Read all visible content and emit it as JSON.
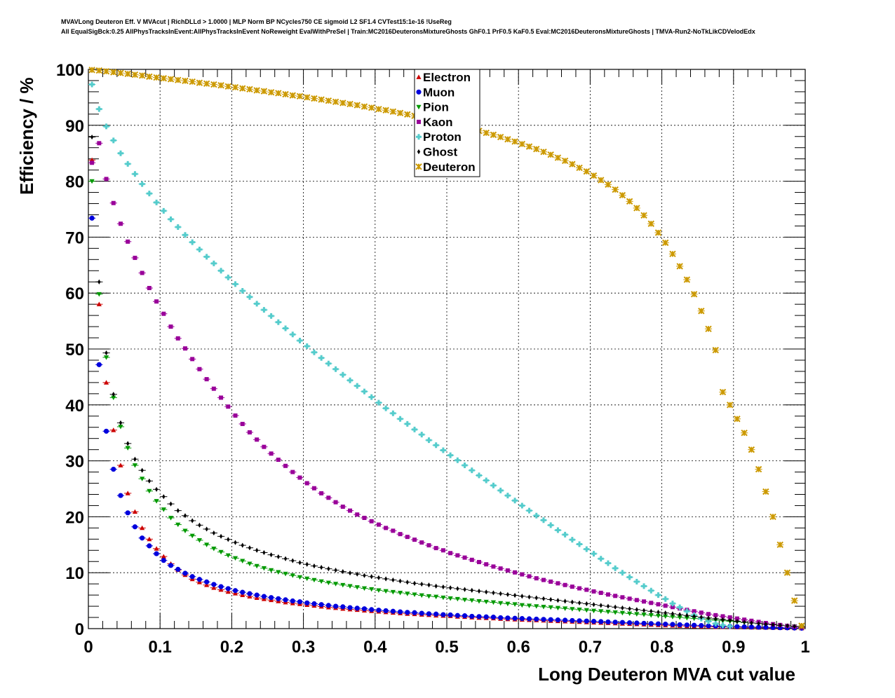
{
  "header": {
    "line1": "MVAVLong Deuteron Eff. V MVAcut | RichDLLd > 1.0000 | MLP Norm BP NCycles750 CE sigmoid L2 SF1.4 CVTest15:1e-16 !UseReg",
    "line2": "All EqualSigBck:0.25 AllPhysTracksInEvent:AllPhysTracksInEvent NoReweight EvalWithPreSel | Train:MC2016DeuteronsMixtureGhosts GhF0.1 PrF0.5 KaF0.5 Eval:MC2016DeuteronsMixtureGhosts | TMVA-Run2-NoTkLikCDVelodEdx"
  },
  "chart_data": {
    "type": "scatter",
    "title": "MVAVLong Deuteron Eff. V MVAcut",
    "xlabel": "Long Deuteron MVA cut value",
    "ylabel": "Efficiency / %",
    "xlim": [
      0,
      1
    ],
    "ylim": [
      0,
      100
    ],
    "grid": true,
    "legend_position": "top-center",
    "x_ticks": [
      "0",
      "0.1",
      "0.2",
      "0.3",
      "0.4",
      "0.5",
      "0.6",
      "0.7",
      "0.8",
      "0.9",
      "1"
    ],
    "y_ticks": [
      "0",
      "10",
      "20",
      "30",
      "40",
      "50",
      "60",
      "70",
      "80",
      "90",
      "100"
    ],
    "x": [
      0.005,
      0.015,
      0.025,
      0.035,
      0.045,
      0.055,
      0.065,
      0.075,
      0.085,
      0.095,
      0.105,
      0.115,
      0.125,
      0.135,
      0.145,
      0.155,
      0.165,
      0.175,
      0.185,
      0.195,
      0.205,
      0.215,
      0.225,
      0.235,
      0.245,
      0.255,
      0.265,
      0.275,
      0.285,
      0.295,
      0.305,
      0.315,
      0.325,
      0.335,
      0.345,
      0.355,
      0.365,
      0.375,
      0.385,
      0.395,
      0.405,
      0.415,
      0.425,
      0.435,
      0.445,
      0.455,
      0.465,
      0.475,
      0.485,
      0.495,
      0.505,
      0.515,
      0.525,
      0.535,
      0.545,
      0.555,
      0.565,
      0.575,
      0.585,
      0.595,
      0.605,
      0.615,
      0.625,
      0.635,
      0.645,
      0.655,
      0.665,
      0.675,
      0.685,
      0.695,
      0.705,
      0.715,
      0.725,
      0.735,
      0.745,
      0.755,
      0.765,
      0.775,
      0.785,
      0.795,
      0.805,
      0.815,
      0.825,
      0.835,
      0.845,
      0.855,
      0.865,
      0.875,
      0.885,
      0.895,
      0.905,
      0.915,
      0.925,
      0.935,
      0.945,
      0.955,
      0.965,
      0.975,
      0.985,
      0.995
    ],
    "series": [
      {
        "name": "Electron",
        "color": "#cc0000",
        "marker": "triangle-up",
        "values": [
          83.8,
          58.0,
          44.0,
          35.5,
          29.2,
          24.2,
          20.9,
          18.0,
          16.0,
          14.3,
          12.9,
          11.6,
          10.5,
          9.6,
          8.85,
          8.3,
          7.8,
          7.3,
          6.95,
          6.6,
          6.3,
          6.0,
          5.75,
          5.5,
          5.3,
          5.1,
          4.9,
          4.7,
          4.55,
          4.4,
          4.25,
          4.1,
          3.95,
          3.8,
          3.7,
          3.55,
          3.45,
          3.35,
          3.25,
          3.15,
          3.05,
          2.95,
          2.85,
          2.75,
          2.65,
          2.6,
          2.5,
          2.45,
          2.35,
          2.3,
          2.25,
          2.15,
          2.1,
          2.0,
          1.95,
          1.9,
          1.85,
          1.75,
          1.7,
          1.65,
          1.6,
          1.55,
          1.5,
          1.45,
          1.4,
          1.35,
          1.3,
          1.25,
          1.2,
          1.15,
          1.1,
          1.05,
          1.0,
          0.95,
          0.9,
          0.85,
          0.8,
          0.75,
          0.7,
          0.65,
          0.6,
          0.55,
          0.5,
          0.45,
          0.42,
          0.38,
          0.35,
          0.32,
          0.3,
          0.28,
          0.25,
          0.23,
          0.21,
          0.19,
          0.17,
          0.15,
          0.13,
          0.11,
          0.09,
          0.07
        ]
      },
      {
        "name": "Muon",
        "color": "#0000dd",
        "marker": "circle",
        "values": [
          73.4,
          47.2,
          35.3,
          28.5,
          23.8,
          20.7,
          18.2,
          16.2,
          14.8,
          13.4,
          12.2,
          11.3,
          10.6,
          9.9,
          9.3,
          8.8,
          8.35,
          7.9,
          7.5,
          7.15,
          6.8,
          6.5,
          6.25,
          6.0,
          5.75,
          5.55,
          5.35,
          5.15,
          4.95,
          4.8,
          4.6,
          4.45,
          4.3,
          4.15,
          4.0,
          3.9,
          3.75,
          3.65,
          3.55,
          3.4,
          3.3,
          3.2,
          3.1,
          3.0,
          2.9,
          2.85,
          2.75,
          2.65,
          2.6,
          2.5,
          2.45,
          2.35,
          2.3,
          2.2,
          2.15,
          2.1,
          2.05,
          1.95,
          1.9,
          1.85,
          1.8,
          1.75,
          1.7,
          1.65,
          1.6,
          1.55,
          1.5,
          1.45,
          1.4,
          1.35,
          1.3,
          1.25,
          1.2,
          1.15,
          1.1,
          1.05,
          1.0,
          0.95,
          0.9,
          0.85,
          0.8,
          0.75,
          0.7,
          0.65,
          0.6,
          0.55,
          0.5,
          0.45,
          0.42,
          0.38,
          0.35,
          0.32,
          0.29,
          0.26,
          0.23,
          0.2,
          0.17,
          0.14,
          0.11,
          0.08
        ]
      },
      {
        "name": "Pion",
        "color": "#009900",
        "marker": "triangle-down",
        "values": [
          80.0,
          59.8,
          48.5,
          41.3,
          36.1,
          32.3,
          29.2,
          26.8,
          24.6,
          22.8,
          21.3,
          19.8,
          18.6,
          17.5,
          16.6,
          15.8,
          15.0,
          14.3,
          13.7,
          13.1,
          12.6,
          12.1,
          11.6,
          11.2,
          10.8,
          10.45,
          10.1,
          9.8,
          9.5,
          9.2,
          8.95,
          8.7,
          8.45,
          8.2,
          8.0,
          7.8,
          7.6,
          7.4,
          7.2,
          7.05,
          6.85,
          6.7,
          6.55,
          6.4,
          6.25,
          6.1,
          5.95,
          5.8,
          5.7,
          5.55,
          5.4,
          5.3,
          5.15,
          5.05,
          4.9,
          4.8,
          4.7,
          4.55,
          4.45,
          4.35,
          4.2,
          4.1,
          4.0,
          3.9,
          3.8,
          3.7,
          3.6,
          3.5,
          3.4,
          3.3,
          3.2,
          3.1,
          3.0,
          2.9,
          2.8,
          2.7,
          2.6,
          2.5,
          2.4,
          2.3,
          2.2,
          2.1,
          2.0,
          1.9,
          1.8,
          1.7,
          1.6,
          1.5,
          1.4,
          1.3,
          1.2,
          1.1,
          1.0,
          0.9,
          0.8,
          0.7,
          0.6,
          0.5,
          0.4,
          0.3
        ]
      },
      {
        "name": "Kaon",
        "color": "#990099",
        "marker": "square",
        "values": [
          83.3,
          86.8,
          80.4,
          76.1,
          72.4,
          69.2,
          66.3,
          63.6,
          60.9,
          58.5,
          56.3,
          54.0,
          51.9,
          50.1,
          48.2,
          46.4,
          44.6,
          42.9,
          41.3,
          39.7,
          38.1,
          36.6,
          35.1,
          33.8,
          32.5,
          31.3,
          30.2,
          29.1,
          28.0,
          27.0,
          26.0,
          25.1,
          24.2,
          23.4,
          22.6,
          21.8,
          21.1,
          20.4,
          19.8,
          19.2,
          18.6,
          18.0,
          17.5,
          16.9,
          16.4,
          15.9,
          15.4,
          14.9,
          14.4,
          14.0,
          13.5,
          13.1,
          12.7,
          12.3,
          11.9,
          11.5,
          11.1,
          10.75,
          10.4,
          10.05,
          9.7,
          9.35,
          9.0,
          8.7,
          8.4,
          8.1,
          7.8,
          7.5,
          7.2,
          6.95,
          6.65,
          6.4,
          6.1,
          5.85,
          5.6,
          5.35,
          5.1,
          4.85,
          4.6,
          4.35,
          4.1,
          3.85,
          3.6,
          3.35,
          3.1,
          2.85,
          2.6,
          2.4,
          2.2,
          2.0,
          1.8,
          1.6,
          1.4,
          1.2,
          1.0,
          0.8,
          0.65,
          0.5,
          0.35,
          0.2
        ]
      },
      {
        "name": "Proton",
        "color": "#55cccc",
        "marker": "cross",
        "values": [
          97.3,
          92.9,
          89.8,
          87.3,
          85.0,
          83.1,
          81.3,
          79.5,
          77.8,
          76.2,
          74.7,
          73.2,
          71.8,
          70.4,
          69.1,
          67.8,
          66.5,
          65.3,
          64.0,
          62.8,
          61.6,
          60.4,
          59.3,
          58.1,
          57.0,
          55.9,
          54.8,
          53.7,
          52.6,
          51.5,
          50.5,
          49.4,
          48.4,
          47.4,
          46.4,
          45.4,
          44.4,
          43.4,
          42.4,
          41.4,
          40.4,
          39.4,
          38.5,
          37.5,
          36.6,
          35.6,
          34.7,
          33.7,
          32.8,
          31.9,
          31.0,
          30.1,
          29.2,
          28.3,
          27.4,
          26.5,
          25.6,
          24.7,
          23.8,
          22.9,
          22.0,
          21.1,
          20.2,
          19.4,
          18.5,
          17.6,
          16.8,
          15.9,
          15.1,
          14.2,
          13.4,
          12.5,
          11.7,
          10.8,
          10.0,
          9.2,
          8.4,
          7.6,
          6.8,
          6.0,
          5.3,
          4.5,
          3.8,
          3.1,
          2.4,
          1.8,
          1.3,
          0.9,
          0.6,
          0.4
        ]
      },
      {
        "name": "Ghost",
        "color": "#000000",
        "marker": "diamond",
        "values": [
          87.9,
          62.0,
          49.3,
          41.9,
          36.8,
          33.1,
          30.3,
          28.3,
          26.4,
          24.9,
          23.6,
          22.3,
          21.1,
          20.2,
          19.3,
          18.5,
          17.8,
          17.1,
          16.5,
          15.95,
          15.4,
          14.9,
          14.45,
          14.0,
          13.6,
          13.2,
          12.85,
          12.5,
          12.15,
          11.8,
          11.5,
          11.2,
          10.95,
          10.7,
          10.45,
          10.2,
          9.95,
          9.75,
          9.5,
          9.3,
          9.1,
          8.9,
          8.7,
          8.5,
          8.3,
          8.1,
          7.95,
          7.8,
          7.6,
          7.45,
          7.3,
          7.15,
          7.0,
          6.85,
          6.7,
          6.55,
          6.4,
          6.25,
          6.1,
          5.95,
          5.8,
          5.65,
          5.5,
          5.35,
          5.2,
          5.05,
          4.9,
          4.75,
          4.6,
          4.45,
          4.3,
          4.15,
          4.0,
          3.85,
          3.7,
          3.55,
          3.4,
          3.25,
          3.1,
          2.95,
          2.8,
          2.65,
          2.5,
          2.35,
          2.2,
          2.05,
          1.9,
          1.75,
          1.6,
          1.45,
          1.3,
          1.15,
          1.0,
          0.9,
          0.8,
          0.7,
          0.6,
          0.5,
          0.4,
          0.3
        ]
      },
      {
        "name": "Deuteron",
        "color": "#cc9900",
        "marker": "star",
        "values": [
          99.9,
          99.8,
          99.65,
          99.5,
          99.35,
          99.2,
          99.05,
          98.9,
          98.7,
          98.55,
          98.4,
          98.25,
          98.1,
          97.95,
          97.8,
          97.6,
          97.45,
          97.3,
          97.15,
          96.95,
          96.8,
          96.6,
          96.45,
          96.25,
          96.1,
          95.9,
          95.75,
          95.55,
          95.35,
          95.2,
          95.0,
          94.8,
          94.6,
          94.4,
          94.2,
          94.0,
          93.8,
          93.6,
          93.35,
          93.15,
          92.9,
          92.7,
          92.45,
          92.2,
          91.95,
          91.7,
          91.45,
          91.2,
          90.9,
          90.6,
          90.3,
          90.0,
          89.7,
          89.35,
          89.0,
          88.65,
          88.3,
          87.9,
          87.5,
          87.1,
          86.65,
          86.2,
          85.75,
          85.25,
          84.75,
          84.2,
          83.65,
          83.05,
          82.4,
          81.75,
          81.0,
          80.2,
          79.4,
          78.5,
          77.5,
          76.4,
          75.2,
          73.9,
          72.4,
          70.8,
          69.0,
          67.0,
          64.8,
          62.4,
          59.8,
          56.8,
          53.6,
          49.8,
          42.3,
          40.0,
          37.5,
          35.0,
          32.0,
          28.5,
          24.5,
          20.0,
          15.0,
          10.0,
          5.0,
          0.5
        ]
      }
    ]
  }
}
